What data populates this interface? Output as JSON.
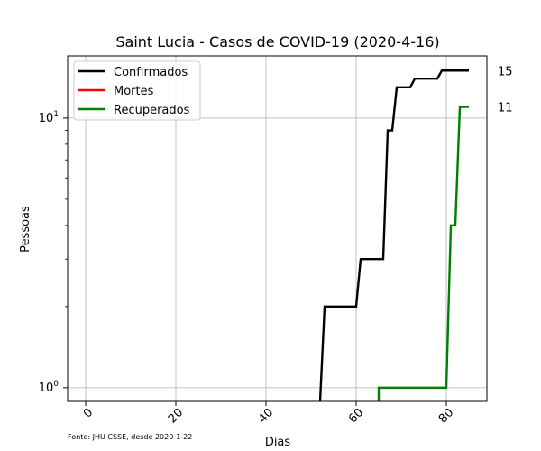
{
  "chart_data": {
    "type": "line",
    "title": "Saint Lucia - Casos de COVID-19 (2020-4-16)",
    "xlabel": "Dias",
    "ylabel": "Pessoas",
    "source": "Fonte: JHU CSSE, desde 2020-1-22",
    "xscale": "linear",
    "yscale": "log",
    "xlim": [
      -4,
      89
    ],
    "ylim": [
      0.89,
      17
    ],
    "xticks": [
      0,
      20,
      40,
      60,
      80
    ],
    "xtick_labels": [
      "0",
      "20",
      "40",
      "60",
      "80"
    ],
    "yticks": [
      1,
      10
    ],
    "ytick_labels": [
      "10^0",
      "10^1"
    ],
    "grid": true,
    "legend_position": "top-left",
    "series": [
      {
        "name": "Confirmados",
        "color": "#000000",
        "x": [
          52,
          53,
          60,
          61,
          66,
          67,
          68,
          69,
          72,
          73,
          78,
          79,
          85
        ],
        "y": [
          0.89,
          2,
          2,
          3,
          3,
          9,
          9,
          13,
          13,
          14,
          14,
          15,
          15
        ]
      },
      {
        "name": "Mortes",
        "color": "#ff0000",
        "x": [],
        "y": []
      },
      {
        "name": "Recuperados",
        "color": "#008000",
        "x": [
          65,
          65,
          80,
          81,
          82,
          83,
          85
        ],
        "y": [
          0.89,
          1,
          1,
          4,
          4,
          11,
          11
        ]
      }
    ],
    "end_labels": [
      {
        "text": "15",
        "value": 15
      },
      {
        "text": "11",
        "value": 11
      }
    ]
  }
}
